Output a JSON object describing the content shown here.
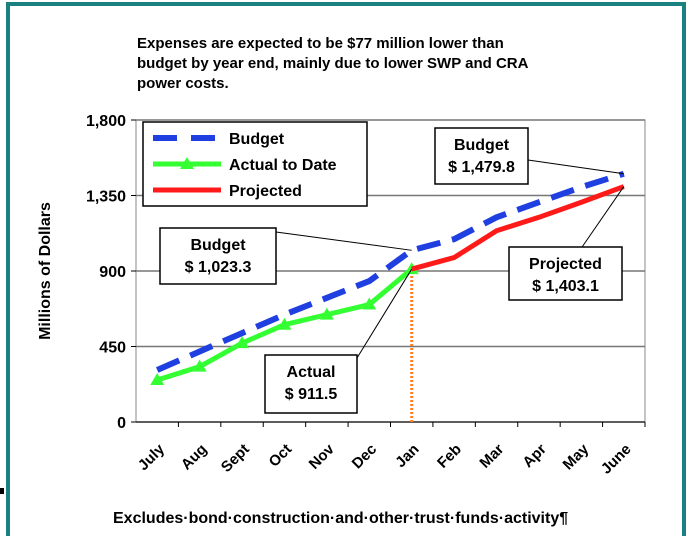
{
  "chart_data": {
    "type": "line",
    "title_lines": [
      "Expenses are expected to be $77 million lower than",
      "budget by year end, mainly due to lower SWP and CRA",
      "power costs."
    ],
    "y_label": "Millions of Dollars",
    "footnote": "Excludes·bond·construction·and·other·trust·funds·activity¶",
    "categories": [
      "July",
      "Aug",
      "Sept",
      "Oct",
      "Nov",
      "Dec",
      "Jan",
      "Feb",
      "Mar",
      "Apr",
      "May",
      "June"
    ],
    "ylim": [
      0,
      1800
    ],
    "yticks": [
      0,
      450,
      900,
      {
        "value": 1350,
        "label": "1,350"
      },
      {
        "value": 1800,
        "label": "1,800"
      }
    ],
    "grid": true,
    "legend": "upper left",
    "series": [
      {
        "name": "Budget",
        "color": "#1f3fe0",
        "dashed": true,
        "callout": "Budget",
        "values": [
          310,
          420,
          530,
          640,
          740,
          840,
          1023.3,
          1090,
          1220,
          1310,
          1400,
          1479.8
        ],
        "value_labels": [
          null,
          null,
          null,
          null,
          null,
          null,
          "$ 1,023.3",
          null,
          null,
          null,
          null,
          "$ 1,479.8"
        ]
      },
      {
        "name": "Actual to Date",
        "color": "#33ff33",
        "marker": "triangle",
        "callout": "Actual",
        "values": [
          250,
          330,
          470,
          580,
          640,
          700,
          911.5,
          null,
          null,
          null,
          null,
          null
        ],
        "value_labels": [
          null,
          null,
          null,
          null,
          null,
          null,
          "$ 911.5",
          null,
          null,
          null,
          null,
          null
        ]
      },
      {
        "name": "Projected",
        "color": "#ff1a1a",
        "callout": "Projected",
        "values": [
          null,
          null,
          null,
          null,
          null,
          null,
          911.5,
          980,
          1140,
          1220,
          1310,
          1403.1
        ],
        "value_labels": [
          null,
          null,
          null,
          null,
          null,
          null,
          null,
          null,
          null,
          null,
          null,
          "$ 1,403.1"
        ]
      }
    ]
  }
}
